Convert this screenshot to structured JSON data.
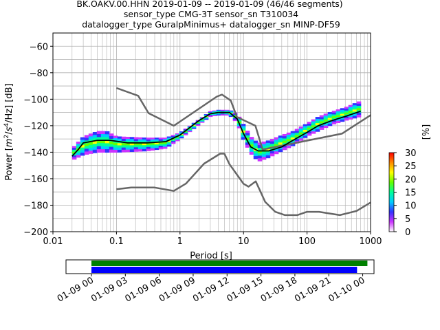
{
  "chart_data": [
    {
      "type": "heatmap",
      "title_lines": [
        "BK.OAKV.00.HHN   2019-01-09 -- 2019-01-09  (46/46 segments)",
        "sensor_type CMG-3T sensor_sn T310034",
        "datalogger_type GuralpMinimus+ datalogger_sn MINP-DF59"
      ],
      "xlabel": "Period [s]",
      "ylabel_parts": {
        "pre": "Power [",
        "m": "m",
        "two": "2",
        "slash1": "/",
        "s": "s",
        "four": "4",
        "slash2": "/Hz] [dB]"
      },
      "x_scale": "log",
      "xlim": [
        0.01,
        1000
      ],
      "ylim": [
        -200,
        -50
      ],
      "x_ticks": [
        {
          "value": 0.01,
          "label": "0.01"
        },
        {
          "value": 0.1,
          "label": "0.1"
        },
        {
          "value": 1,
          "label": "1"
        },
        {
          "value": 10,
          "label": "10"
        },
        {
          "value": 100,
          "label": "100"
        },
        {
          "value": 1000,
          "label": "1000"
        }
      ],
      "y_ticks": [
        {
          "value": -60,
          "label": "−60"
        },
        {
          "value": -80,
          "label": "−80"
        },
        {
          "value": -100,
          "label": "−100"
        },
        {
          "value": -120,
          "label": "−120"
        },
        {
          "value": -140,
          "label": "−140"
        },
        {
          "value": -160,
          "label": "−160"
        },
        {
          "value": -180,
          "label": "−180"
        },
        {
          "value": -200,
          "label": "−200"
        }
      ],
      "grid": true,
      "nhnm": {
        "color": "#666666",
        "points": [
          [
            0.1,
            -91.5
          ],
          [
            0.22,
            -97.4
          ],
          [
            0.32,
            -110.5
          ],
          [
            0.8,
            -120
          ],
          [
            3.8,
            -98
          ],
          [
            4.6,
            -96.5
          ],
          [
            6.3,
            -101
          ],
          [
            7.9,
            -113.5
          ],
          [
            15.4,
            -120
          ],
          [
            20,
            -138
          ],
          [
            354.8,
            -126
          ],
          [
            1000,
            -112
          ]
        ]
      },
      "nlnm": {
        "color": "#666666",
        "points": [
          [
            0.1,
            -168
          ],
          [
            0.17,
            -166.7
          ],
          [
            0.4,
            -166.7
          ],
          [
            0.8,
            -169.2
          ],
          [
            1.24,
            -163.7
          ],
          [
            2.4,
            -148.6
          ],
          [
            4.3,
            -141.1
          ],
          [
            5,
            -141.1
          ],
          [
            6,
            -149
          ],
          [
            10,
            -163.8
          ],
          [
            12,
            -166
          ],
          [
            15.6,
            -162
          ],
          [
            21.9,
            -177.5
          ],
          [
            31.6,
            -185
          ],
          [
            45,
            -187.5
          ],
          [
            70,
            -187.5
          ],
          [
            100,
            -185
          ],
          [
            154.5,
            -185
          ],
          [
            328.4,
            -187.5
          ],
          [
            600,
            -184.4
          ],
          [
            1000,
            -178
          ]
        ]
      },
      "mean": {
        "color": "#000000",
        "points": [
          [
            0.02,
            -143
          ],
          [
            0.025,
            -138
          ],
          [
            0.03,
            -133
          ],
          [
            0.05,
            -131
          ],
          [
            0.08,
            -131
          ],
          [
            0.15,
            -133
          ],
          [
            0.3,
            -133
          ],
          [
            0.6,
            -132
          ],
          [
            1,
            -127
          ],
          [
            2,
            -116
          ],
          [
            3,
            -111
          ],
          [
            4,
            -110
          ],
          [
            6,
            -110
          ],
          [
            8,
            -115
          ],
          [
            10,
            -126
          ],
          [
            13,
            -136
          ],
          [
            17,
            -139
          ],
          [
            25,
            -139
          ],
          [
            40,
            -136
          ],
          [
            60,
            -131
          ],
          [
            100,
            -125
          ],
          [
            150,
            -120
          ],
          [
            250,
            -116
          ],
          [
            400,
            -113
          ],
          [
            700,
            -109
          ]
        ]
      },
      "psd_band": {
        "upper": [
          [
            0.02,
            -137
          ],
          [
            0.03,
            -128
          ],
          [
            0.05,
            -124
          ],
          [
            0.07,
            -124
          ],
          [
            0.1,
            -128
          ],
          [
            0.3,
            -129
          ],
          [
            0.6,
            -129
          ],
          [
            1,
            -125
          ],
          [
            2,
            -115
          ],
          [
            3,
            -109
          ],
          [
            4,
            -108
          ],
          [
            6,
            -108
          ],
          [
            8,
            -111
          ],
          [
            10,
            -119
          ],
          [
            13,
            -128
          ],
          [
            17,
            -133
          ],
          [
            25,
            -131
          ],
          [
            40,
            -127
          ],
          [
            60,
            -124
          ],
          [
            100,
            -118
          ],
          [
            150,
            -113
          ],
          [
            250,
            -109
          ],
          [
            400,
            -106
          ],
          [
            700,
            -101
          ]
        ],
        "lower": [
          [
            0.02,
            -146
          ],
          [
            0.03,
            -142
          ],
          [
            0.05,
            -140
          ],
          [
            0.07,
            -140
          ],
          [
            0.1,
            -140
          ],
          [
            0.3,
            -139
          ],
          [
            0.6,
            -137
          ],
          [
            1,
            -130
          ],
          [
            2,
            -119
          ],
          [
            3,
            -113
          ],
          [
            4,
            -112
          ],
          [
            6,
            -112
          ],
          [
            8,
            -118
          ],
          [
            10,
            -131
          ],
          [
            13,
            -141
          ],
          [
            17,
            -147
          ],
          [
            25,
            -144
          ],
          [
            40,
            -139
          ],
          [
            60,
            -135
          ],
          [
            100,
            -128
          ],
          [
            150,
            -124
          ],
          [
            250,
            -119
          ],
          [
            400,
            -116
          ],
          [
            700,
            -113
          ]
        ]
      },
      "colorbar": {
        "label": "[%]",
        "range": [
          0,
          30
        ],
        "ticks": [
          {
            "value": 0,
            "label": "0"
          },
          {
            "value": 5,
            "label": "5"
          },
          {
            "value": 10,
            "label": "10"
          },
          {
            "value": 15,
            "label": "15"
          },
          {
            "value": 20,
            "label": "20"
          },
          {
            "value": 25,
            "label": "25"
          },
          {
            "value": 30,
            "label": "30"
          }
        ],
        "colormap": [
          "#ffffff",
          "#cc33ff",
          "#3333ff",
          "#00ccff",
          "#00ff99",
          "#66ff00",
          "#ffff00",
          "#ff8800",
          "#ff0000"
        ]
      }
    },
    {
      "type": "timeline",
      "x_range": [
        "2019-01-08T21:45",
        "2019-01-10T01:00"
      ],
      "x_ticks": [
        {
          "value": "2019-01-09T00:00",
          "label": "01-09 00"
        },
        {
          "value": "2019-01-09T03:00",
          "label": "01-09 03"
        },
        {
          "value": "2019-01-09T06:00",
          "label": "01-09 06"
        },
        {
          "value": "2019-01-09T09:00",
          "label": "01-09 09"
        },
        {
          "value": "2019-01-09T12:00",
          "label": "01-09 12"
        },
        {
          "value": "2019-01-09T15:00",
          "label": "01-09 15"
        },
        {
          "value": "2019-01-09T18:00",
          "label": "01-09 18"
        },
        {
          "value": "2019-01-09T21:00",
          "label": "01-09 21"
        },
        {
          "value": "2019-01-10T00:00",
          "label": "01-10 00"
        }
      ],
      "bars": [
        {
          "start": "2019-01-09T00:00",
          "end": "2019-01-10T00:25",
          "color": "#008000"
        },
        {
          "start": "2019-01-09T00:00",
          "end": "2019-01-09T23:30",
          "color": "#0000ff"
        }
      ]
    }
  ]
}
